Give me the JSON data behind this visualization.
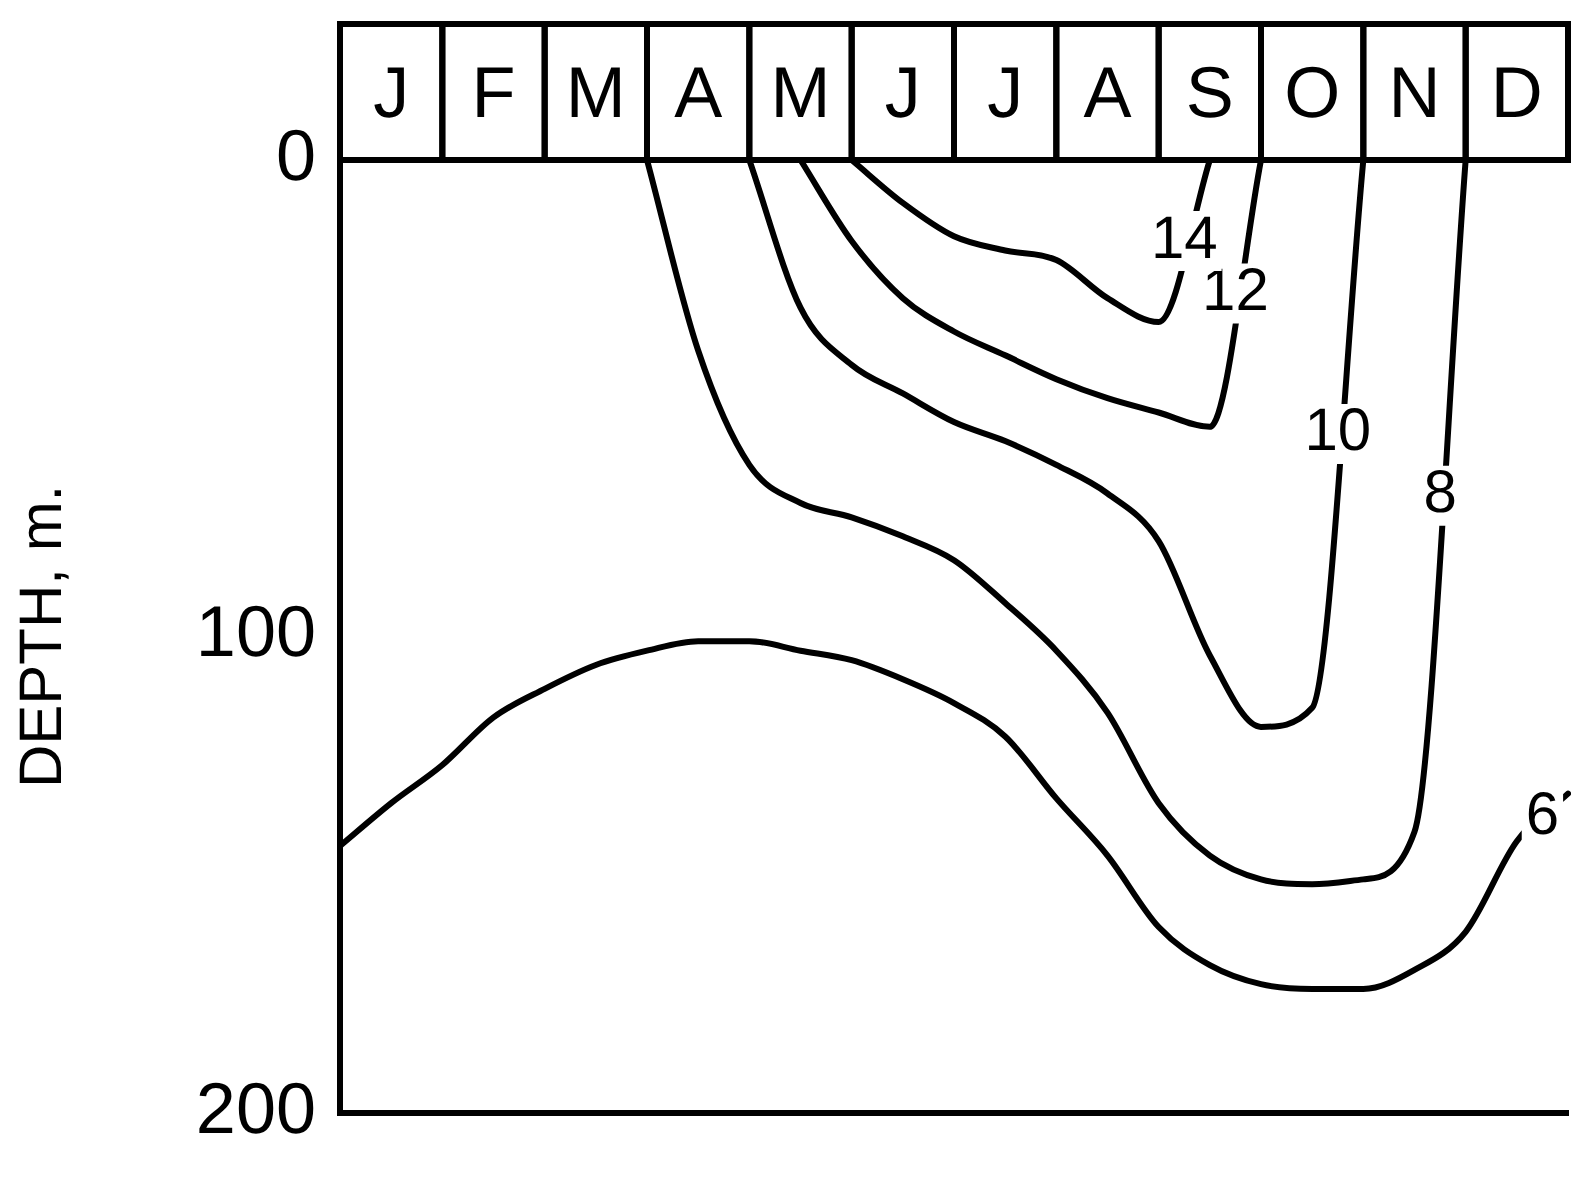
{
  "chart_data": {
    "type": "line",
    "ylabel": "DEPTH, m.",
    "ylim": [
      200,
      0
    ],
    "yticks": [
      0,
      100,
      200
    ],
    "categories": [
      null,
      "J",
      null,
      "F",
      null,
      "M",
      null,
      "A",
      null,
      "M",
      null,
      "J",
      null,
      "J",
      null,
      "A",
      null,
      "S",
      null,
      "O",
      null,
      "N",
      null,
      "D",
      null
    ],
    "grid": false,
    "marker": "none",
    "line_style": "solid",
    "series": [
      {
        "name": "6",
        "color": "#000000",
        "values": [
          144,
          135,
          127,
          117,
          111,
          106,
          103,
          101,
          101,
          103,
          105,
          109,
          114,
          121,
          134,
          146,
          161,
          169,
          173,
          174,
          174,
          170,
          162,
          143,
          133
        ]
      },
      {
        "name": "8",
        "color": "#000000",
        "values": [
          null,
          null,
          null,
          null,
          null,
          null,
          0,
          40,
          64,
          72,
          75,
          79,
          84,
          93,
          103,
          116,
          135,
          146,
          151,
          152,
          151,
          141,
          0,
          null,
          null
        ]
      },
      {
        "name": "10",
        "color": "#000000",
        "values": [
          null,
          null,
          null,
          null,
          null,
          null,
          null,
          null,
          0,
          31,
          43,
          49,
          55,
          59,
          64,
          70,
          80,
          104,
          119,
          115,
          0,
          null,
          null,
          null,
          null
        ]
      },
      {
        "name": "12",
        "color": "#000000",
        "values": [
          null,
          null,
          null,
          null,
          null,
          null,
          null,
          null,
          null,
          0,
          17,
          29,
          36,
          41,
          46,
          50,
          53,
          56,
          0,
          null,
          null,
          null,
          null,
          null,
          null
        ]
      },
      {
        "name": "14",
        "color": "#000000",
        "values": [
          null,
          null,
          null,
          null,
          null,
          null,
          null,
          null,
          null,
          null,
          0,
          9,
          16,
          19,
          21,
          29,
          34,
          0,
          null,
          null,
          null,
          null,
          null,
          null,
          null
        ]
      }
    ]
  }
}
